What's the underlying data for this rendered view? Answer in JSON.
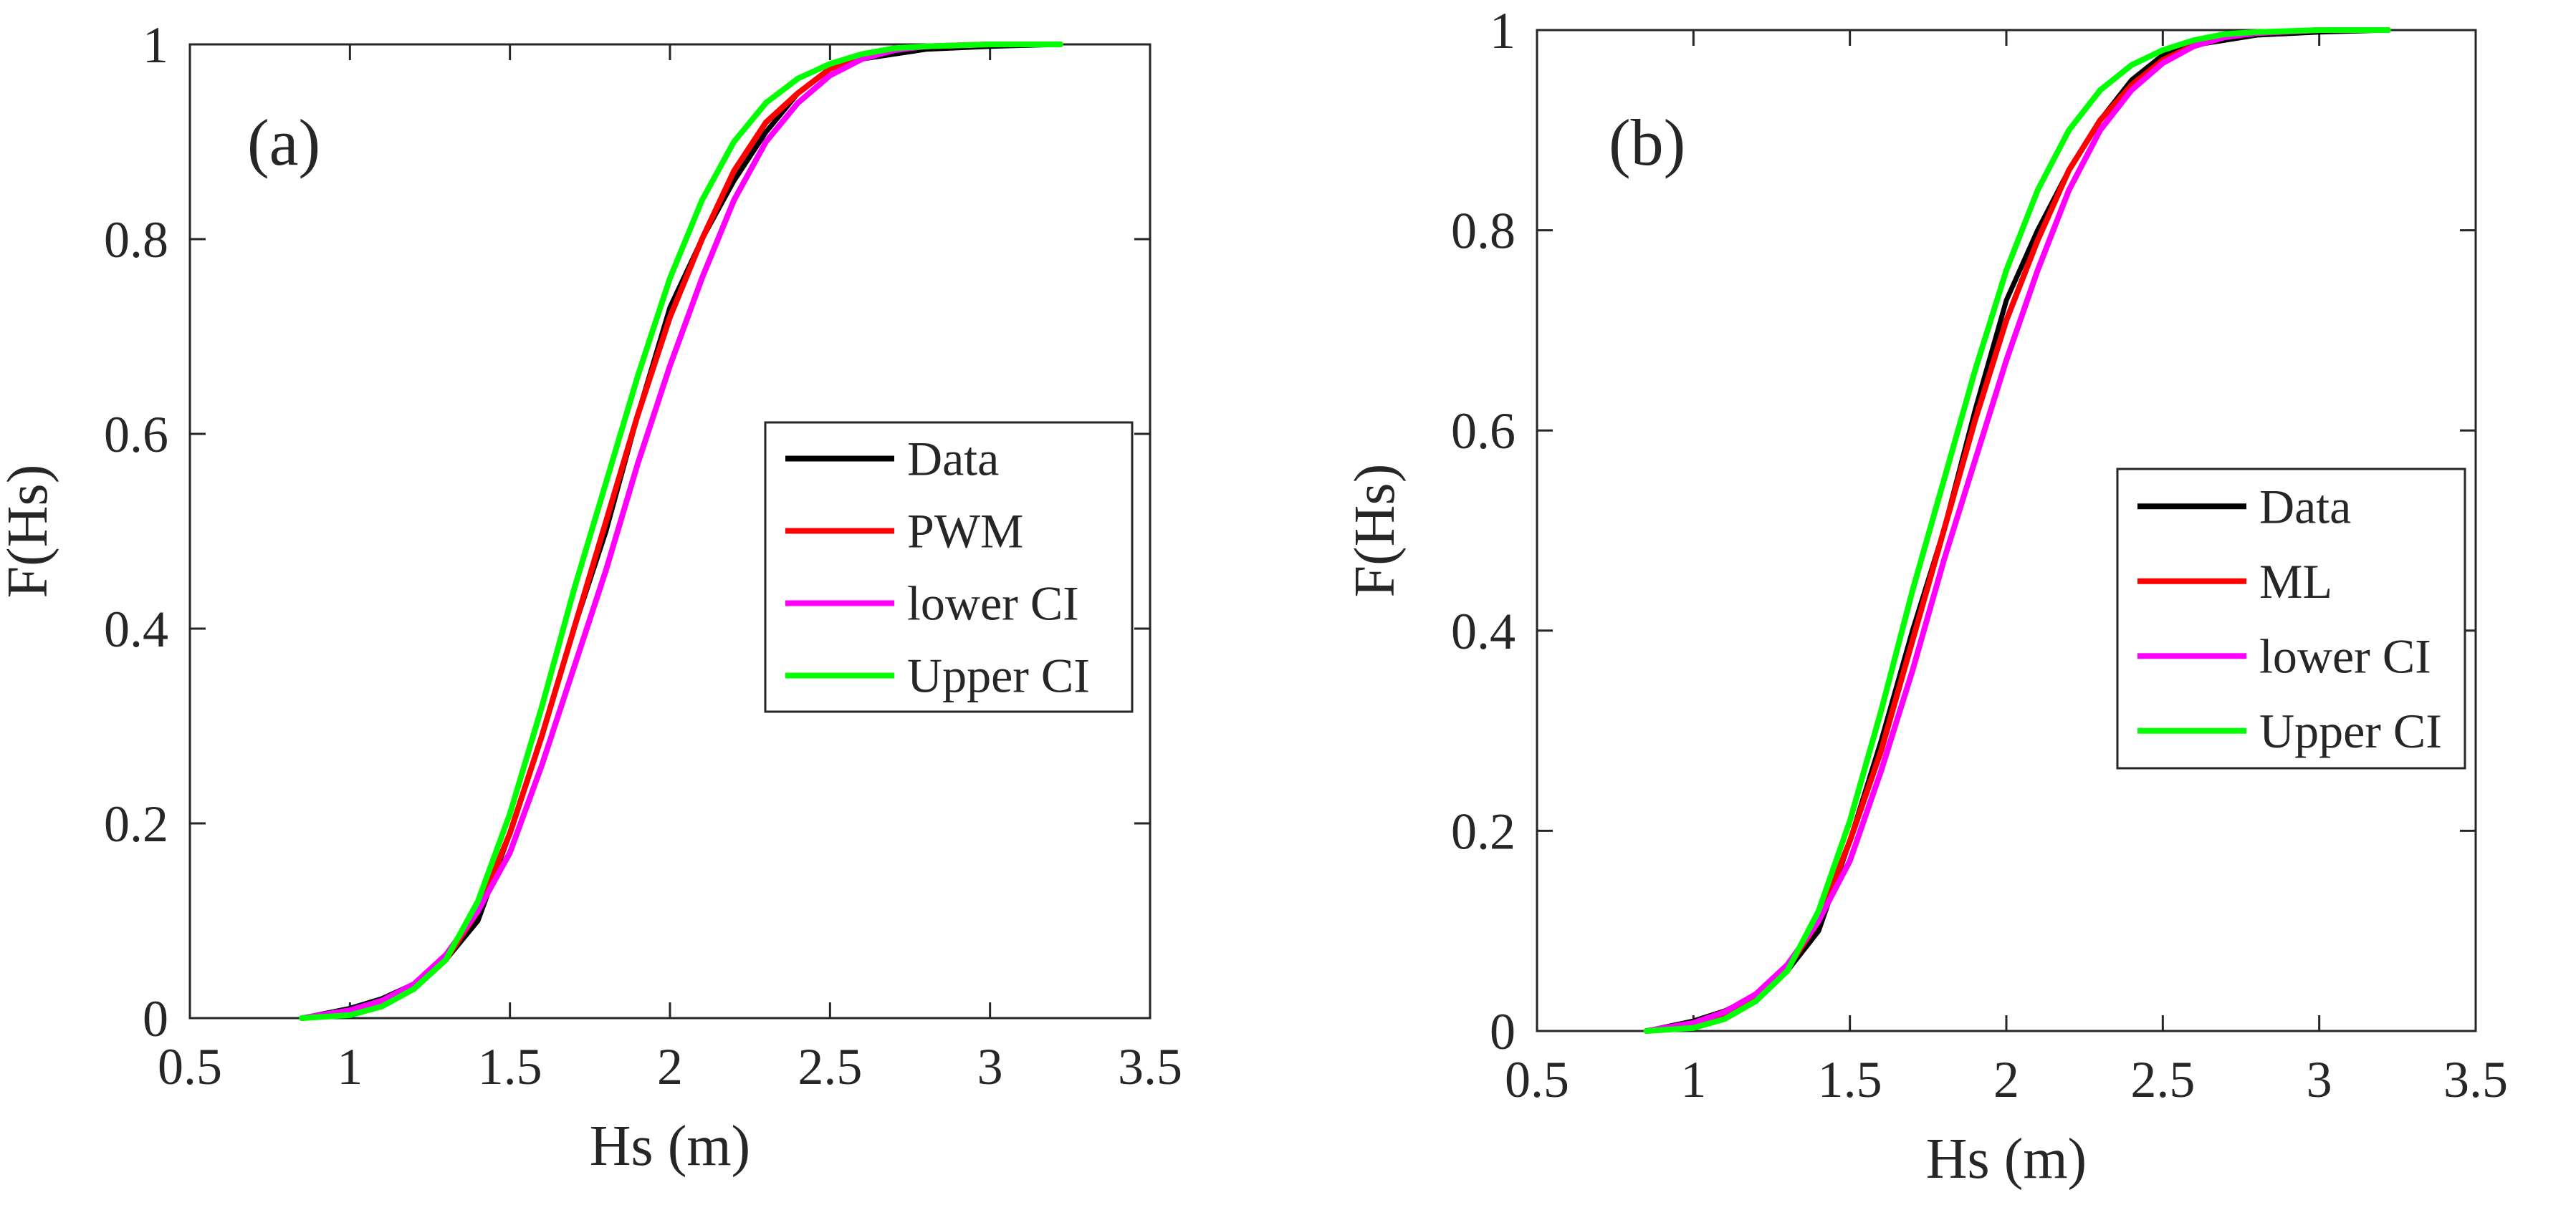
{
  "chart_data": [
    {
      "type": "line",
      "panel_label": "(a)",
      "xlabel": "Hs (m)",
      "ylabel": "F(Hs)",
      "xlim": [
        0.5,
        3.5
      ],
      "ylim": [
        0,
        1
      ],
      "xticks": [
        "0.5",
        "1",
        "1.5",
        "2",
        "2.5",
        "3",
        "3.5"
      ],
      "yticks": [
        "0",
        "0.2",
        "0.4",
        "0.6",
        "0.8",
        "1"
      ],
      "legend_position": "center-right",
      "series": [
        {
          "name": "Data",
          "color": "#000000",
          "x": [
            0.85,
            1.0,
            1.1,
            1.2,
            1.3,
            1.4,
            1.5,
            1.6,
            1.7,
            1.8,
            1.9,
            2.0,
            2.1,
            2.2,
            2.3,
            2.4,
            2.5,
            2.6,
            2.7,
            2.8,
            3.0,
            3.22
          ],
          "y": [
            0.0,
            0.01,
            0.02,
            0.035,
            0.06,
            0.1,
            0.19,
            0.29,
            0.4,
            0.5,
            0.62,
            0.73,
            0.8,
            0.86,
            0.91,
            0.95,
            0.975,
            0.985,
            0.99,
            0.995,
            0.998,
            1.0
          ]
        },
        {
          "name": "PWM",
          "color": "#ff0000",
          "x": [
            0.85,
            1.0,
            1.1,
            1.2,
            1.3,
            1.4,
            1.5,
            1.6,
            1.7,
            1.8,
            1.9,
            2.0,
            2.1,
            2.2,
            2.3,
            2.4,
            2.5,
            2.6,
            2.7,
            2.8,
            3.0,
            3.22
          ],
          "y": [
            0.0,
            0.005,
            0.015,
            0.03,
            0.06,
            0.11,
            0.19,
            0.29,
            0.4,
            0.51,
            0.62,
            0.72,
            0.8,
            0.87,
            0.92,
            0.95,
            0.975,
            0.988,
            0.995,
            0.998,
            1.0,
            1.0
          ]
        },
        {
          "name": "lower CI",
          "color": "#ff00ff",
          "x": [
            0.85,
            1.0,
            1.1,
            1.2,
            1.3,
            1.4,
            1.5,
            1.6,
            1.7,
            1.8,
            1.9,
            2.0,
            2.1,
            2.2,
            2.3,
            2.4,
            2.5,
            2.6,
            2.7,
            2.8,
            3.0,
            3.22
          ],
          "y": [
            0.0,
            0.008,
            0.018,
            0.035,
            0.065,
            0.11,
            0.17,
            0.26,
            0.36,
            0.46,
            0.57,
            0.67,
            0.76,
            0.84,
            0.9,
            0.94,
            0.968,
            0.985,
            0.994,
            0.998,
            1.0,
            1.0
          ]
        },
        {
          "name": "Upper CI",
          "color": "#00ff00",
          "x": [
            0.85,
            1.0,
            1.1,
            1.2,
            1.3,
            1.4,
            1.5,
            1.6,
            1.7,
            1.8,
            1.9,
            2.0,
            2.1,
            2.2,
            2.3,
            2.4,
            2.5,
            2.6,
            2.7,
            2.8,
            3.0,
            3.22
          ],
          "y": [
            0.0,
            0.003,
            0.012,
            0.03,
            0.06,
            0.12,
            0.21,
            0.32,
            0.44,
            0.55,
            0.66,
            0.76,
            0.84,
            0.9,
            0.94,
            0.965,
            0.98,
            0.99,
            0.996,
            0.998,
            1.0,
            1.0
          ]
        }
      ]
    },
    {
      "type": "line",
      "panel_label": "(b)",
      "xlabel": "Hs (m)",
      "ylabel": "F(Hs)",
      "xlim": [
        0.5,
        3.5
      ],
      "ylim": [
        0,
        1
      ],
      "xticks": [
        "0.5",
        "1",
        "1.5",
        "2",
        "2.5",
        "3",
        "3.5"
      ],
      "yticks": [
        "0",
        "0.2",
        "0.4",
        "0.6",
        "0.8",
        "1"
      ],
      "legend_position": "center-right",
      "series": [
        {
          "name": "Data",
          "color": "#000000",
          "x": [
            0.85,
            1.0,
            1.1,
            1.2,
            1.3,
            1.4,
            1.5,
            1.6,
            1.7,
            1.8,
            1.9,
            2.0,
            2.1,
            2.2,
            2.3,
            2.4,
            2.5,
            2.6,
            2.7,
            2.8,
            3.0,
            3.22
          ],
          "y": [
            0.0,
            0.01,
            0.02,
            0.035,
            0.06,
            0.1,
            0.19,
            0.29,
            0.4,
            0.5,
            0.62,
            0.73,
            0.8,
            0.86,
            0.91,
            0.95,
            0.975,
            0.985,
            0.99,
            0.995,
            0.998,
            1.0
          ]
        },
        {
          "name": "ML",
          "color": "#ff0000",
          "x": [
            0.85,
            1.0,
            1.1,
            1.2,
            1.3,
            1.4,
            1.5,
            1.6,
            1.7,
            1.8,
            1.9,
            2.0,
            2.1,
            2.2,
            2.3,
            2.4,
            2.5,
            2.6,
            2.7,
            2.8,
            3.0,
            3.22
          ],
          "y": [
            0.0,
            0.006,
            0.016,
            0.033,
            0.062,
            0.11,
            0.19,
            0.28,
            0.39,
            0.5,
            0.61,
            0.71,
            0.79,
            0.86,
            0.91,
            0.945,
            0.97,
            0.985,
            0.993,
            0.997,
            1.0,
            1.0
          ]
        },
        {
          "name": "lower CI",
          "color": "#ff00ff",
          "x": [
            0.85,
            1.0,
            1.1,
            1.2,
            1.3,
            1.4,
            1.5,
            1.6,
            1.7,
            1.8,
            1.9,
            2.0,
            2.1,
            2.2,
            2.3,
            2.4,
            2.5,
            2.6,
            2.7,
            2.8,
            3.0,
            3.22
          ],
          "y": [
            0.0,
            0.008,
            0.019,
            0.037,
            0.066,
            0.11,
            0.17,
            0.26,
            0.36,
            0.47,
            0.57,
            0.67,
            0.76,
            0.84,
            0.9,
            0.94,
            0.967,
            0.984,
            0.993,
            0.997,
            1.0,
            1.0
          ]
        },
        {
          "name": "Upper CI",
          "color": "#00ff00",
          "x": [
            0.85,
            1.0,
            1.1,
            1.2,
            1.3,
            1.4,
            1.5,
            1.6,
            1.7,
            1.8,
            1.9,
            2.0,
            2.1,
            2.2,
            2.3,
            2.4,
            2.5,
            2.6,
            2.7,
            2.8,
            3.0,
            3.22
          ],
          "y": [
            0.0,
            0.003,
            0.012,
            0.03,
            0.06,
            0.12,
            0.21,
            0.32,
            0.44,
            0.55,
            0.66,
            0.76,
            0.84,
            0.9,
            0.94,
            0.965,
            0.98,
            0.99,
            0.996,
            0.998,
            1.0,
            1.0
          ]
        }
      ]
    }
  ]
}
